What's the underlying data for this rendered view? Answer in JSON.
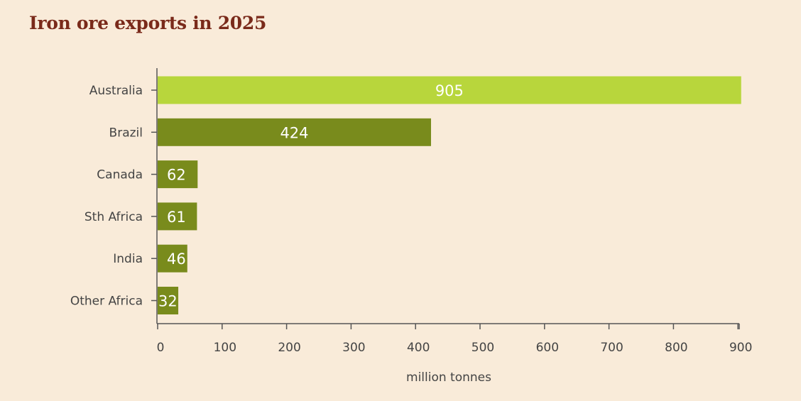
{
  "colors": {
    "background": "#f9ebd9",
    "title": "#7a2a1a",
    "highlight_bar": "#b8d63c",
    "bar": "#798b1c",
    "axis": "#555555",
    "text": "#444444"
  },
  "chart_data": {
    "type": "bar",
    "orientation": "horizontal",
    "title": "Iron ore exports in 2025",
    "xlabel": "million tonnes",
    "ylabel": "",
    "xlim": [
      0,
      910
    ],
    "xticks": [
      0,
      100,
      200,
      300,
      400,
      500,
      600,
      700,
      800,
      900
    ],
    "categories": [
      "Australia",
      "Brazil",
      "Canada",
      "Sth Africa",
      "India",
      "Other Africa"
    ],
    "values": [
      905,
      424,
      62,
      61,
      46,
      32
    ],
    "highlight": "Australia",
    "grid": false,
    "legend": "none"
  }
}
